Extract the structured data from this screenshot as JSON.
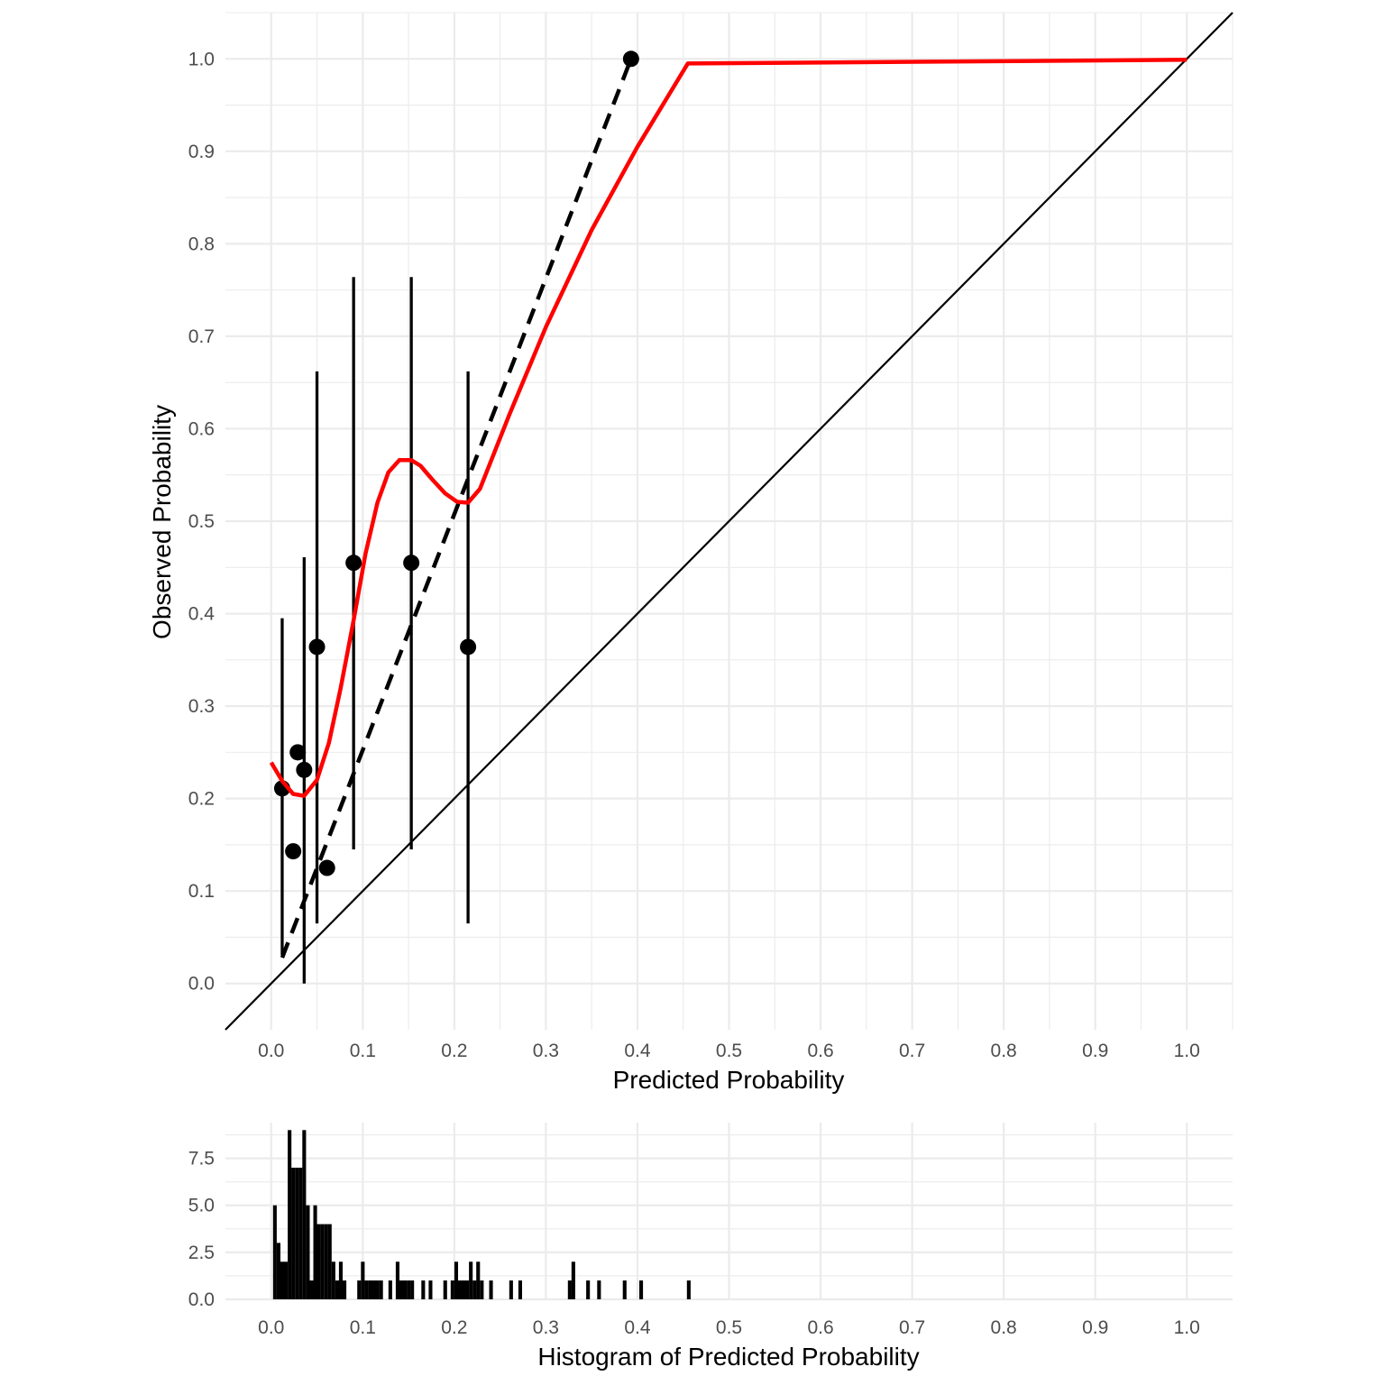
{
  "chart_data": [
    {
      "type": "scatter",
      "xlabel": "Predicted Probability",
      "ylabel": "Observed Probability",
      "xlim": [
        -0.05,
        1.05
      ],
      "ylim": [
        -0.05,
        1.05
      ],
      "x_ticks": [
        "0.0",
        "0.1",
        "0.2",
        "0.3",
        "0.4",
        "0.5",
        "0.6",
        "0.7",
        "0.8",
        "0.9",
        "1.0"
      ],
      "y_ticks": [
        "0.0",
        "0.1",
        "0.2",
        "0.3",
        "0.4",
        "0.5",
        "0.6",
        "0.7",
        "0.8",
        "0.9",
        "1.0"
      ],
      "grid": true,
      "points": [
        {
          "x": 0.012,
          "y": 0.211,
          "lo": 0.031,
          "hi": 0.395
        },
        {
          "x": 0.024,
          "y": 0.143,
          "lo": null,
          "hi": null
        },
        {
          "x": 0.029,
          "y": 0.25,
          "lo": null,
          "hi": null
        },
        {
          "x": 0.036,
          "y": 0.231,
          "lo": 0.0,
          "hi": 0.461
        },
        {
          "x": 0.05,
          "y": 0.364,
          "lo": 0.065,
          "hi": 0.662
        },
        {
          "x": 0.061,
          "y": 0.125,
          "lo": null,
          "hi": null
        },
        {
          "x": 0.09,
          "y": 0.455,
          "lo": 0.145,
          "hi": 0.764
        },
        {
          "x": 0.153,
          "y": 0.455,
          "lo": 0.145,
          "hi": 0.764
        },
        {
          "x": 0.215,
          "y": 0.364,
          "lo": 0.065,
          "hi": 0.662
        },
        {
          "x": 0.393,
          "y": 1.0,
          "lo": null,
          "hi": null
        }
      ],
      "reference_line": {
        "x": [
          -0.05,
          1.05
        ],
        "y": [
          -0.05,
          1.05
        ],
        "color": "#000000"
      },
      "linear_fit": {
        "x": [
          0.012,
          0.393
        ],
        "y": [
          0.028,
          1.0
        ],
        "style": "dashed",
        "color": "#000000"
      },
      "smooth_curve": {
        "color": "#ff0000",
        "x": [
          0.0,
          0.012,
          0.024,
          0.036,
          0.05,
          0.063,
          0.076,
          0.09,
          0.103,
          0.116,
          0.128,
          0.14,
          0.153,
          0.163,
          0.176,
          0.19,
          0.203,
          0.215,
          0.228,
          0.26,
          0.3,
          0.35,
          0.4,
          0.455,
          1.0
        ],
        "y": [
          0.239,
          0.219,
          0.205,
          0.203,
          0.22,
          0.26,
          0.32,
          0.393,
          0.465,
          0.52,
          0.553,
          0.566,
          0.566,
          0.56,
          0.545,
          0.53,
          0.521,
          0.52,
          0.535,
          0.615,
          0.71,
          0.815,
          0.905,
          0.995,
          0.999
        ]
      }
    },
    {
      "type": "bar",
      "xlabel": "Histogram of Predicted Probability",
      "xlim": [
        -0.05,
        1.05
      ],
      "ylim": [
        0,
        9.4
      ],
      "x_ticks": [
        "0.0",
        "0.1",
        "0.2",
        "0.3",
        "0.4",
        "0.5",
        "0.6",
        "0.7",
        "0.8",
        "0.9",
        "1.0"
      ],
      "y_ticks": [
        "0.0",
        "2.5",
        "5.0",
        "7.5"
      ],
      "y_tick_values": [
        0,
        2.5,
        5,
        7.5
      ],
      "bin_width": 0.004,
      "bins": [
        {
          "x": 0.004,
          "count": 5
        },
        {
          "x": 0.008,
          "count": 3
        },
        {
          "x": 0.012,
          "count": 2
        },
        {
          "x": 0.016,
          "count": 2
        },
        {
          "x": 0.02,
          "count": 9
        },
        {
          "x": 0.024,
          "count": 7
        },
        {
          "x": 0.028,
          "count": 7
        },
        {
          "x": 0.032,
          "count": 7
        },
        {
          "x": 0.036,
          "count": 9
        },
        {
          "x": 0.04,
          "count": 5
        },
        {
          "x": 0.044,
          "count": 1
        },
        {
          "x": 0.048,
          "count": 5
        },
        {
          "x": 0.052,
          "count": 4
        },
        {
          "x": 0.056,
          "count": 4
        },
        {
          "x": 0.06,
          "count": 4
        },
        {
          "x": 0.064,
          "count": 4
        },
        {
          "x": 0.068,
          "count": 2
        },
        {
          "x": 0.072,
          "count": 1
        },
        {
          "x": 0.076,
          "count": 2
        },
        {
          "x": 0.08,
          "count": 1
        },
        {
          "x": 0.096,
          "count": 1
        },
        {
          "x": 0.1,
          "count": 2
        },
        {
          "x": 0.104,
          "count": 1
        },
        {
          "x": 0.108,
          "count": 1
        },
        {
          "x": 0.112,
          "count": 1
        },
        {
          "x": 0.116,
          "count": 1
        },
        {
          "x": 0.12,
          "count": 1
        },
        {
          "x": 0.13,
          "count": 1
        },
        {
          "x": 0.138,
          "count": 2
        },
        {
          "x": 0.142,
          "count": 1
        },
        {
          "x": 0.146,
          "count": 1
        },
        {
          "x": 0.15,
          "count": 1
        },
        {
          "x": 0.154,
          "count": 1
        },
        {
          "x": 0.166,
          "count": 1
        },
        {
          "x": 0.174,
          "count": 1
        },
        {
          "x": 0.19,
          "count": 1
        },
        {
          "x": 0.198,
          "count": 1
        },
        {
          "x": 0.202,
          "count": 2
        },
        {
          "x": 0.206,
          "count": 1
        },
        {
          "x": 0.21,
          "count": 1
        },
        {
          "x": 0.214,
          "count": 1
        },
        {
          "x": 0.218,
          "count": 2
        },
        {
          "x": 0.222,
          "count": 1
        },
        {
          "x": 0.226,
          "count": 2
        },
        {
          "x": 0.23,
          "count": 1
        },
        {
          "x": 0.24,
          "count": 1
        },
        {
          "x": 0.262,
          "count": 1
        },
        {
          "x": 0.272,
          "count": 1
        },
        {
          "x": 0.326,
          "count": 1
        },
        {
          "x": 0.33,
          "count": 2
        },
        {
          "x": 0.346,
          "count": 1
        },
        {
          "x": 0.358,
          "count": 1
        },
        {
          "x": 0.386,
          "count": 1
        },
        {
          "x": 0.404,
          "count": 1
        },
        {
          "x": 0.456,
          "count": 1
        }
      ]
    }
  ]
}
